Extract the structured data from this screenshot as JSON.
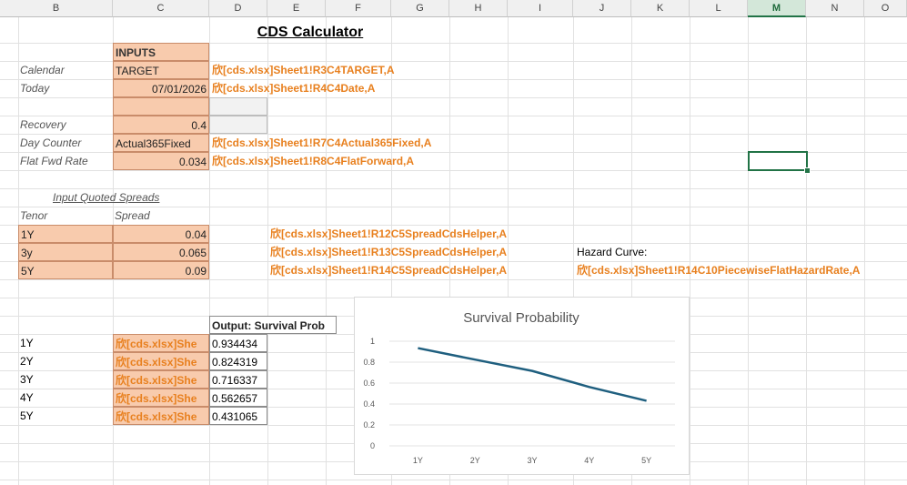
{
  "columns": [
    "B",
    "C",
    "D",
    "E",
    "F",
    "G",
    "H",
    "I",
    "J",
    "K",
    "L",
    "M",
    "N",
    "O"
  ],
  "selected_column": "M",
  "title": "CDS Calculator",
  "inputs_header": "INPUTS",
  "rows": {
    "calendar": {
      "label": "Calendar",
      "value": "TARGET",
      "ref": "欣[cds.xlsx]Sheet1!R3C4TARGET,A"
    },
    "today": {
      "label": "Today",
      "value": "07/01/2026",
      "ref": "欣[cds.xlsx]Sheet1!R4C4Date,A"
    },
    "recovery": {
      "label": "Recovery",
      "value": "0.4"
    },
    "day_counter": {
      "label": "Day Counter",
      "value": "Actual365Fixed",
      "ref": "欣[cds.xlsx]Sheet1!R7C4Actual365Fixed,A"
    },
    "flat_fwd": {
      "label": "Flat Fwd Rate",
      "value": "0.034",
      "ref": "欣[cds.xlsx]Sheet1!R8C4FlatForward,A"
    }
  },
  "spreads": {
    "header": "Input Quoted Spreads",
    "tenor_label": "Tenor",
    "spread_label": "Spread",
    "items": [
      {
        "tenor": "1Y",
        "spread": "0.04",
        "ref": "欣[cds.xlsx]Sheet1!R12C5SpreadCdsHelper,A"
      },
      {
        "tenor": "3y",
        "spread": "0.065",
        "ref": "欣[cds.xlsx]Sheet1!R13C5SpreadCdsHelper,A"
      },
      {
        "tenor": "5Y",
        "spread": "0.09",
        "ref": "欣[cds.xlsx]Sheet1!R14C5SpreadCdsHelper,A"
      }
    ]
  },
  "hazard": {
    "label": "Hazard Curve:",
    "ref": "欣[cds.xlsx]Sheet1!R14C10PiecewiseFlatHazardRate,A"
  },
  "output": {
    "header": "Output: Survival Prob",
    "items": [
      {
        "tenor": "1Y",
        "ref": "欣[cds.xlsx]She",
        "value": "0.934434"
      },
      {
        "tenor": "2Y",
        "ref": "欣[cds.xlsx]She",
        "value": "0.824319"
      },
      {
        "tenor": "3Y",
        "ref": "欣[cds.xlsx]She",
        "value": "0.716337"
      },
      {
        "tenor": "4Y",
        "ref": "欣[cds.xlsx]She",
        "value": "0.562657"
      },
      {
        "tenor": "5Y",
        "ref": "欣[cds.xlsx]She",
        "value": "0.431065"
      }
    ]
  },
  "chart_data": {
    "type": "line",
    "title": "Survival Probability",
    "categories": [
      "1Y",
      "2Y",
      "3Y",
      "4Y",
      "5Y"
    ],
    "values": [
      0.934434,
      0.824319,
      0.716337,
      0.562657,
      0.431065
    ],
    "ylim": [
      0,
      1
    ],
    "yticks": [
      "0",
      "0.2",
      "0.4",
      "0.6",
      "0.8",
      "1"
    ],
    "line_color": "#1f5f7f",
    "grid": true,
    "legend": "none"
  }
}
